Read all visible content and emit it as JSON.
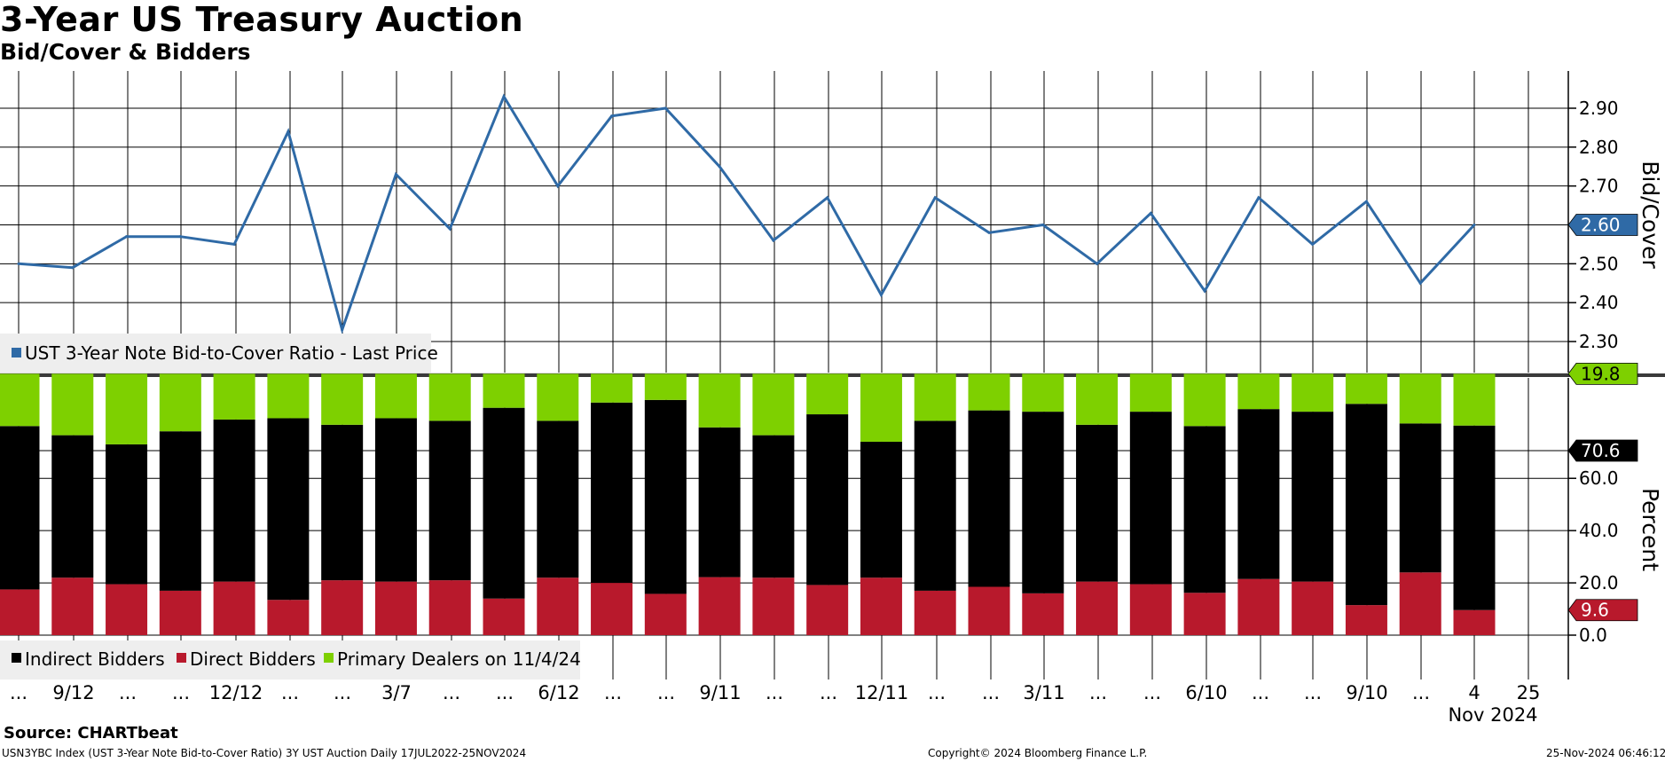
{
  "header": {
    "title": "3-Year US Treasury Auction",
    "subtitle": "Bid/Cover & Bidders"
  },
  "footer": {
    "source": "Source: CHARTbeat",
    "description": "USN3YBC Index (UST 3-Year Note Bid-to-Cover Ratio) 3Y UST Auction  Daily 17JUL2022-25NOV2024",
    "copyright": "Copyright© 2024 Bloomberg Finance L.P.",
    "timestamp": "25-Nov-2024 06:46:12"
  },
  "colors": {
    "line": "#2f6aa6",
    "indirect": "#000000",
    "direct": "#b8192c",
    "primary": "#7ed000",
    "grid": "#000000"
  },
  "chart_data": [
    {
      "type": "line",
      "name": "UST 3-Year Note Bid-to-Cover Ratio",
      "legend": "UST 3-Year Note Bid-to-Cover Ratio - Last Price",
      "ylabel": "Bid/Cover",
      "ylim": [
        2.22,
        2.99
      ],
      "yticks": [
        "2.30",
        "2.40",
        "2.50",
        "2.60",
        "2.70",
        "2.80",
        "2.90"
      ],
      "last_value_label": "2.60",
      "values": [
        2.5,
        2.49,
        2.57,
        2.57,
        2.55,
        2.84,
        2.33,
        2.73,
        2.59,
        2.93,
        2.7,
        2.88,
        2.9,
        2.75,
        2.56,
        2.67,
        2.42,
        2.67,
        2.58,
        2.6,
        2.5,
        2.63,
        2.43,
        2.67,
        2.55,
        2.66,
        2.45,
        2.6
      ]
    },
    {
      "type": "stacked-bar",
      "ylabel": "Percent",
      "ylim": [
        -6,
        100
      ],
      "yticks": [
        "0.0",
        "20.0",
        "40.0",
        "60.0"
      ],
      "series": [
        {
          "name": "Direct Bidders",
          "color_key": "direct",
          "values": [
            17.5,
            22,
            19.5,
            17,
            20.5,
            13.5,
            21,
            20.5,
            21,
            14,
            22,
            20,
            15.8,
            22.2,
            22,
            19.2,
            22,
            17,
            18.5,
            16,
            20.5,
            19.5,
            16.2,
            21.5,
            20.5,
            11.5,
            24,
            9.6
          ]
        },
        {
          "name": "Indirect Bidders",
          "color_key": "indirect",
          "values": [
            62.5,
            54.5,
            53.5,
            61,
            62,
            69.5,
            59.5,
            62.5,
            61,
            73,
            60,
            69,
            74.2,
            57.3,
            54.5,
            65.3,
            52,
            65,
            67.5,
            69.5,
            60,
            66,
            63.8,
            65,
            65,
            77,
            57,
            70.6
          ]
        },
        {
          "name": "Primary Dealers on 11/4/24",
          "color_key": "primary",
          "values": [
            20,
            23.5,
            27,
            22,
            17.5,
            17,
            19.5,
            17,
            18,
            13,
            18,
            11,
            10,
            20.5,
            23.5,
            15.5,
            26,
            18,
            14,
            14.5,
            19.5,
            14.5,
            20,
            13.5,
            14.5,
            11.5,
            19,
            19.8
          ]
        }
      ],
      "last_value_labels": {
        "primary": "19.8",
        "indirect": "70.6",
        "direct": "9.6"
      },
      "legend": [
        "Indirect Bidders",
        "Direct Bidders",
        "Primary Dealers on 11/4/24"
      ]
    }
  ],
  "x_axis": {
    "ticks": [
      "...",
      "9/12",
      "...",
      "...",
      "12/12",
      "...",
      "...",
      "3/7",
      "...",
      "...",
      "6/12",
      "...",
      "...",
      "9/11",
      "...",
      "...",
      "12/11",
      "...",
      "...",
      "3/11",
      "...",
      "...",
      "6/10",
      "...",
      "...",
      "9/10",
      "...",
      "4",
      "25"
    ],
    "bottom_label": "Nov 2024"
  }
}
